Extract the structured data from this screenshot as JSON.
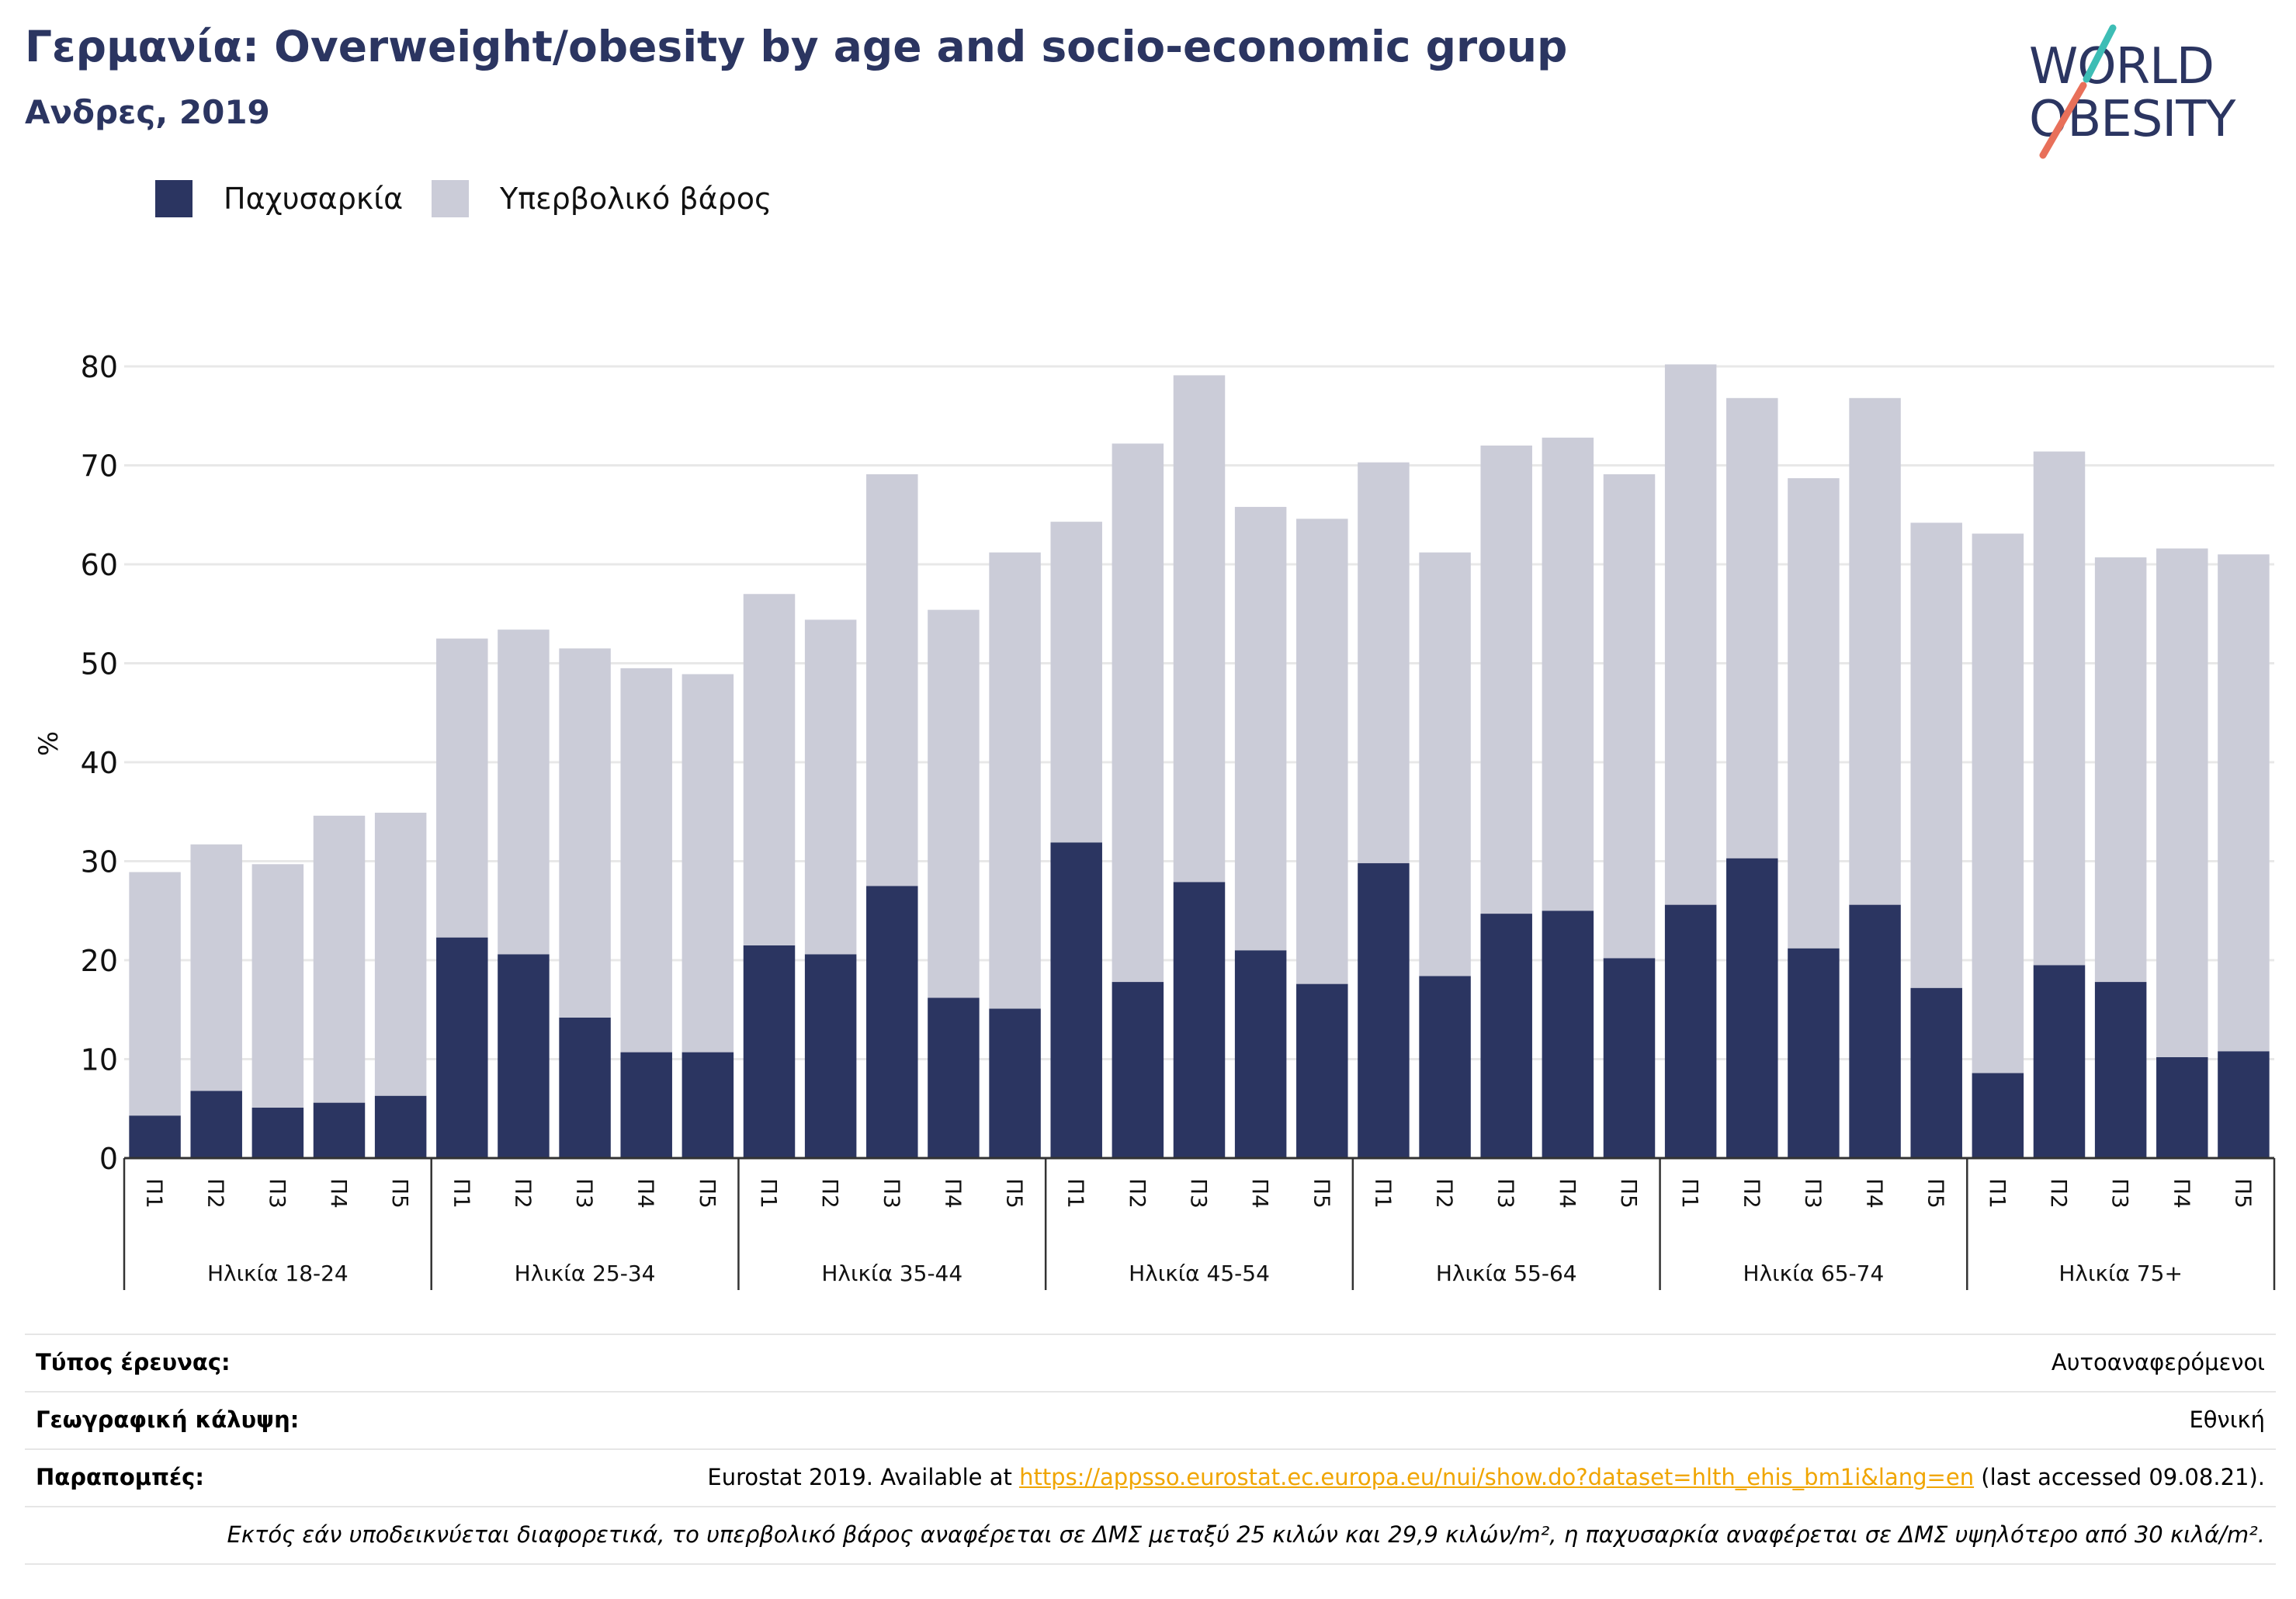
{
  "header": {
    "title": "Γερμανία: Overweight/obesity by age and socio-economic group",
    "subtitle": "Ανδρες, 2019"
  },
  "logo": {
    "line1": "WORLD",
    "line2": "OBESITY"
  },
  "colors": {
    "obesity": "#2b3561",
    "overweight": "#cbccd8",
    "grid": "#e8e8e8",
    "axis": "#333333"
  },
  "legend": [
    {
      "label": "Παχυσαρκία",
      "color": "#2b3561"
    },
    {
      "label": "Υπερβολικό βάρος",
      "color": "#cbccd8"
    }
  ],
  "chart_data": {
    "type": "bar",
    "stacked": true,
    "title": "",
    "ylabel": "%",
    "ylim": [
      0,
      80
    ],
    "yticks": [
      0,
      10,
      20,
      30,
      40,
      50,
      60,
      70,
      80
    ],
    "grid": true,
    "legend_position": "top-left",
    "group_names": [
      "Ηλικία 18-24",
      "Ηλικία 25-34",
      "Ηλικία 35-44",
      "Ηλικία 45-54",
      "Ηλικία 55-64",
      "Ηλικία 65-74",
      "Ηλικία 75+"
    ],
    "categories": [
      "Π1",
      "Π2",
      "Π3",
      "Π4",
      "Π5"
    ],
    "series": [
      {
        "name": "Παχυσαρκία",
        "values": [
          [
            4.3,
            6.8,
            5.1,
            5.6,
            6.3
          ],
          [
            22.3,
            20.6,
            14.2,
            10.7,
            10.7
          ],
          [
            21.5,
            20.6,
            27.5,
            16.2,
            15.1
          ],
          [
            31.9,
            17.8,
            27.9,
            21.0,
            17.6
          ],
          [
            29.8,
            18.4,
            24.7,
            25.0,
            20.2
          ],
          [
            25.6,
            30.3,
            21.2,
            25.6,
            17.2
          ],
          [
            8.6,
            19.5,
            17.8,
            10.2,
            10.8
          ]
        ]
      },
      {
        "name": "Υπερβολικό βάρος",
        "values": [
          [
            24.6,
            24.9,
            24.6,
            29.0,
            28.6
          ],
          [
            30.2,
            32.8,
            37.3,
            38.8,
            38.2
          ],
          [
            35.5,
            33.8,
            41.6,
            39.2,
            46.1
          ],
          [
            32.4,
            54.4,
            51.2,
            44.8,
            47.0
          ],
          [
            40.5,
            42.8,
            47.3,
            47.8,
            48.9
          ],
          [
            54.6,
            46.5,
            47.5,
            51.2,
            47.0
          ],
          [
            54.5,
            51.9,
            42.9,
            51.4,
            50.2
          ]
        ]
      }
    ]
  },
  "footer": {
    "survey_label": "Τύπος έρευνας:",
    "survey_value": "Αυτοαναφερόμενοι",
    "coverage_label": "Γεωγραφική κάλυψη:",
    "coverage_value": "Εθνική",
    "refs_label": "Παραπομπές:",
    "refs_prefix": "Eurostat 2019. Available at ",
    "refs_link": "https://appsso.eurostat.ec.europa.eu/nui/show.do?dataset=hlth_ehis_bm1i&lang=en",
    "refs_suffix": " (last accessed 09.08.21).",
    "note": "Εκτός εάν υποδεικνύεται διαφορετικά, το υπερβολικό βάρος αναφέρεται σε ΔΜΣ μεταξύ 25 κιλών και 29,9 κιλών/m², η παχυσαρκία αναφέρεται σε ΔΜΣ υψηλότερο από 30 κιλά/m²."
  }
}
